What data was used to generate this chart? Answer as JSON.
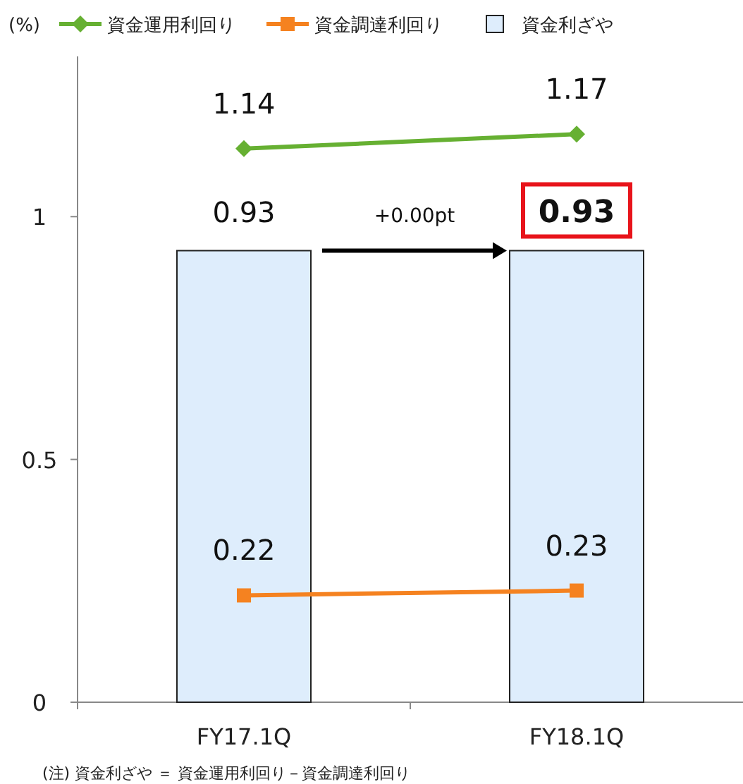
{
  "chart_data": {
    "type": "bar",
    "ylabel": "(%)",
    "categories": [
      "FY17.1Q",
      "FY18.1Q"
    ],
    "series": [
      {
        "name": "資金運用利回り",
        "type": "line",
        "color": "#66b032",
        "marker": "diamond",
        "values": [
          1.14,
          1.17
        ]
      },
      {
        "name": "資金調達利回り",
        "type": "line",
        "color": "#f58220",
        "marker": "square",
        "values": [
          0.22,
          0.23
        ]
      },
      {
        "name": "資金利ざや",
        "color": "#deedfc",
        "values": [
          0.93,
          0.93
        ]
      }
    ],
    "ylim": [
      0,
      1.33
    ],
    "yticks": [
      0,
      0.5,
      1
    ],
    "data_labels": true,
    "legend": "top",
    "annotations": [
      "+0.00pt",
      "(注)  資金利ざや ＝ 資金運用利回り－資金調達利回り"
    ]
  }
}
